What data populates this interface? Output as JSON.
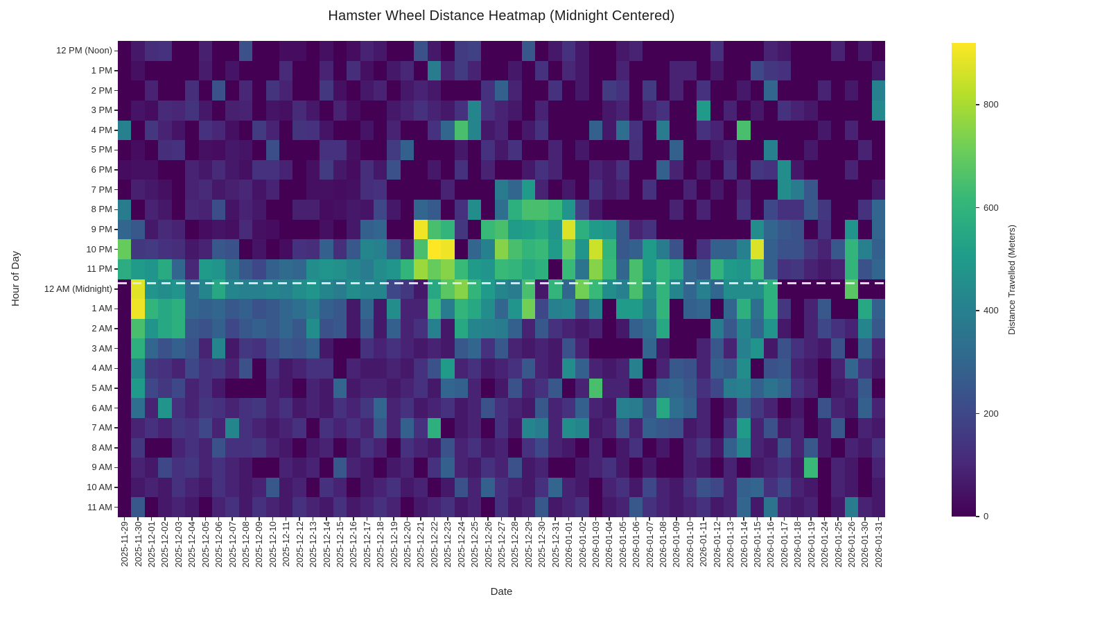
{
  "chart_data": {
    "type": "heatmap",
    "title": "Hamster Wheel Distance Heatmap (Midnight Centered)",
    "xlabel": "Date",
    "ylabel": "Hour of Day",
    "legend_position": "right-colorbar",
    "grid": false,
    "x": [
      "2025-11-29",
      "2025-11-30",
      "2025-12-01",
      "2025-12-02",
      "2025-12-03",
      "2025-12-04",
      "2025-12-05",
      "2025-12-06",
      "2025-12-07",
      "2025-12-08",
      "2025-12-09",
      "2025-12-10",
      "2025-12-11",
      "2025-12-12",
      "2025-12-13",
      "2025-12-14",
      "2025-12-15",
      "2025-12-16",
      "2025-12-17",
      "2025-12-18",
      "2025-12-19",
      "2025-12-20",
      "2025-12-21",
      "2025-12-22",
      "2025-12-23",
      "2025-12-24",
      "2025-12-25",
      "2025-12-26",
      "2025-12-27",
      "2025-12-28",
      "2025-12-29",
      "2025-12-30",
      "2025-12-31",
      "2026-01-01",
      "2026-01-02",
      "2026-01-03",
      "2026-01-04",
      "2026-01-05",
      "2026-01-06",
      "2026-01-07",
      "2026-01-08",
      "2026-01-09",
      "2026-01-10",
      "2026-01-11",
      "2026-01-12",
      "2026-01-13",
      "2026-01-14",
      "2026-01-15",
      "2026-01-16",
      "2026-01-17",
      "2026-01-18",
      "2026-01-19",
      "2026-01-24",
      "2026-01-25",
      "2026-01-26",
      "2026-01-30",
      "2026-01-31"
    ],
    "y": [
      "12 PM (Noon)",
      "1 PM",
      "2 PM",
      "3 PM",
      "4 PM",
      "5 PM",
      "6 PM",
      "7 PM",
      "8 PM",
      "9 PM",
      "10 PM",
      "11 PM",
      "12 AM (Midnight)",
      "1 AM",
      "2 AM",
      "3 AM",
      "4 AM",
      "5 AM",
      "6 AM",
      "7 AM",
      "8 AM",
      "9 AM",
      "10 AM",
      "11 AM"
    ],
    "values": [
      [
        0,
        60,
        120,
        130,
        0,
        0,
        80,
        0,
        0,
        230,
        0,
        0,
        30,
        30,
        0,
        40,
        0,
        30,
        90,
        60,
        0,
        0,
        230,
        60,
        0,
        160,
        180,
        0,
        0,
        0,
        250,
        0,
        60,
        130,
        60,
        0,
        0,
        60,
        90,
        0,
        0,
        0,
        0,
        0,
        130,
        0,
        0,
        0,
        90,
        60,
        0,
        0,
        0,
        90,
        0,
        60,
        0
      ],
      [
        0,
        40,
        0,
        0,
        0,
        0,
        70,
        0,
        50,
        0,
        0,
        0,
        110,
        0,
        0,
        90,
        0,
        120,
        40,
        0,
        60,
        100,
        0,
        380,
        90,
        160,
        90,
        0,
        0,
        60,
        0,
        130,
        0,
        100,
        60,
        0,
        0,
        90,
        0,
        0,
        0,
        90,
        90,
        0,
        60,
        0,
        0,
        200,
        150,
        130,
        0,
        0,
        0,
        0,
        0,
        0,
        60
      ],
      [
        0,
        0,
        90,
        0,
        0,
        120,
        0,
        230,
        0,
        100,
        0,
        140,
        90,
        0,
        0,
        150,
        40,
        0,
        60,
        90,
        0,
        60,
        90,
        60,
        0,
        0,
        0,
        130,
        280,
        90,
        0,
        0,
        130,
        0,
        60,
        0,
        160,
        130,
        0,
        160,
        0,
        90,
        0,
        130,
        0,
        0,
        60,
        0,
        300,
        0,
        0,
        0,
        90,
        0,
        60,
        0,
        400
      ],
      [
        0,
        50,
        30,
        110,
        100,
        140,
        60,
        0,
        80,
        90,
        0,
        50,
        40,
        110,
        60,
        0,
        90,
        30,
        0,
        0,
        60,
        90,
        130,
        90,
        60,
        130,
        420,
        130,
        90,
        60,
        0,
        90,
        0,
        0,
        0,
        0,
        60,
        90,
        0,
        90,
        130,
        0,
        0,
        500,
        0,
        90,
        0,
        60,
        0,
        130,
        90,
        60,
        0,
        0,
        0,
        0,
        430
      ],
      [
        400,
        0,
        150,
        90,
        50,
        0,
        130,
        100,
        40,
        0,
        160,
        90,
        0,
        140,
        130,
        50,
        0,
        0,
        50,
        0,
        90,
        0,
        0,
        130,
        300,
        650,
        420,
        60,
        90,
        0,
        60,
        130,
        0,
        0,
        0,
        280,
        60,
        330,
        130,
        0,
        380,
        0,
        0,
        130,
        90,
        0,
        650,
        0,
        0,
        0,
        0,
        0,
        60,
        0,
        90,
        0,
        0
      ],
      [
        0,
        30,
        0,
        120,
        130,
        0,
        40,
        30,
        60,
        50,
        0,
        220,
        0,
        0,
        0,
        130,
        130,
        40,
        0,
        0,
        160,
        280,
        0,
        0,
        0,
        60,
        0,
        130,
        60,
        130,
        0,
        0,
        90,
        0,
        60,
        0,
        0,
        0,
        120,
        0,
        0,
        280,
        0,
        0,
        60,
        90,
        0,
        0,
        400,
        0,
        0,
        60,
        0,
        0,
        0,
        90,
        0
      ],
      [
        30,
        40,
        40,
        0,
        0,
        90,
        60,
        110,
        60,
        40,
        130,
        130,
        90,
        0,
        40,
        160,
        60,
        30,
        120,
        60,
        230,
        0,
        0,
        60,
        0,
        130,
        0,
        90,
        0,
        0,
        60,
        130,
        90,
        0,
        0,
        90,
        60,
        130,
        0,
        0,
        280,
        90,
        0,
        60,
        0,
        130,
        0,
        150,
        130,
        450,
        60,
        0,
        0,
        0,
        90,
        0,
        0
      ],
      [
        0,
        80,
        60,
        40,
        0,
        90,
        110,
        60,
        80,
        100,
        50,
        90,
        0,
        0,
        40,
        40,
        30,
        40,
        120,
        130,
        0,
        0,
        0,
        0,
        90,
        0,
        0,
        0,
        380,
        300,
        500,
        90,
        0,
        60,
        0,
        130,
        60,
        90,
        0,
        130,
        0,
        0,
        90,
        0,
        60,
        0,
        90,
        0,
        0,
        450,
        380,
        250,
        0,
        0,
        0,
        0,
        60
      ],
      [
        380,
        0,
        90,
        60,
        0,
        100,
        90,
        220,
        50,
        90,
        60,
        0,
        0,
        80,
        80,
        30,
        40,
        60,
        50,
        200,
        60,
        0,
        300,
        260,
        0,
        130,
        450,
        0,
        330,
        580,
        650,
        650,
        620,
        480,
        170,
        60,
        0,
        0,
        0,
        0,
        0,
        90,
        0,
        90,
        0,
        0,
        130,
        0,
        200,
        130,
        130,
        250,
        150,
        0,
        0,
        130,
        300
      ],
      [
        300,
        250,
        60,
        110,
        90,
        0,
        30,
        50,
        40,
        110,
        40,
        30,
        0,
        0,
        0,
        40,
        0,
        60,
        280,
        300,
        0,
        0,
        900,
        650,
        600,
        150,
        0,
        620,
        650,
        500,
        520,
        550,
        480,
        870,
        580,
        500,
        480,
        250,
        90,
        130,
        0,
        0,
        0,
        0,
        0,
        0,
        0,
        450,
        300,
        250,
        230,
        0,
        130,
        0,
        480,
        0,
        300
      ],
      [
        700,
        150,
        160,
        130,
        120,
        60,
        90,
        250,
        230,
        0,
        50,
        0,
        30,
        130,
        120,
        280,
        120,
        250,
        420,
        400,
        250,
        90,
        650,
        930,
        900,
        0,
        300,
        400,
        750,
        650,
        600,
        620,
        500,
        700,
        480,
        850,
        600,
        250,
        280,
        500,
        380,
        230,
        0,
        130,
        280,
        280,
        400,
        870,
        280,
        230,
        230,
        150,
        90,
        250,
        600,
        400,
        280
      ],
      [
        570,
        500,
        480,
        560,
        300,
        100,
        500,
        480,
        350,
        250,
        200,
        280,
        320,
        300,
        450,
        480,
        460,
        420,
        380,
        450,
        480,
        600,
        780,
        700,
        750,
        620,
        500,
        480,
        620,
        600,
        550,
        580,
        0,
        620,
        350,
        750,
        620,
        300,
        650,
        500,
        600,
        550,
        300,
        250,
        600,
        500,
        480,
        620,
        280,
        130,
        150,
        90,
        60,
        90,
        600,
        230,
        300
      ],
      [
        0,
        880,
        480,
        450,
        480,
        300,
        420,
        550,
        420,
        400,
        400,
        420,
        400,
        450,
        480,
        420,
        380,
        450,
        420,
        420,
        200,
        150,
        60,
        550,
        680,
        750,
        600,
        500,
        420,
        380,
        650,
        60,
        600,
        300,
        720,
        620,
        450,
        400,
        650,
        450,
        600,
        420,
        300,
        400,
        300,
        450,
        450,
        450,
        580,
        0,
        0,
        0,
        0,
        0,
        680,
        0,
        0
      ],
      [
        0,
        900,
        600,
        550,
        580,
        300,
        280,
        300,
        250,
        280,
        230,
        250,
        300,
        330,
        380,
        280,
        250,
        60,
        300,
        60,
        450,
        90,
        90,
        620,
        380,
        600,
        550,
        450,
        300,
        480,
        720,
        200,
        400,
        420,
        230,
        400,
        0,
        500,
        500,
        400,
        600,
        0,
        280,
        300,
        0,
        300,
        580,
        330,
        580,
        150,
        0,
        90,
        250,
        0,
        0,
        550,
        280
      ],
      [
        0,
        650,
        480,
        550,
        580,
        250,
        230,
        280,
        200,
        250,
        280,
        250,
        300,
        250,
        450,
        230,
        250,
        60,
        250,
        60,
        280,
        90,
        130,
        400,
        60,
        550,
        420,
        400,
        380,
        280,
        90,
        250,
        130,
        90,
        60,
        90,
        0,
        60,
        280,
        330,
        550,
        0,
        0,
        0,
        380,
        250,
        420,
        300,
        480,
        60,
        0,
        90,
        200,
        130,
        90,
        420,
        250
      ],
      [
        0,
        580,
        300,
        230,
        280,
        230,
        90,
        420,
        60,
        150,
        130,
        200,
        250,
        230,
        280,
        60,
        0,
        0,
        130,
        90,
        130,
        90,
        60,
        90,
        60,
        250,
        300,
        130,
        250,
        90,
        60,
        90,
        60,
        230,
        90,
        0,
        0,
        0,
        0,
        300,
        60,
        0,
        0,
        90,
        250,
        90,
        400,
        480,
        60,
        230,
        130,
        90,
        60,
        230,
        0,
        280,
        90
      ],
      [
        0,
        420,
        150,
        130,
        90,
        200,
        130,
        150,
        90,
        230,
        0,
        130,
        60,
        90,
        130,
        130,
        0,
        90,
        60,
        60,
        90,
        60,
        130,
        230,
        500,
        90,
        130,
        60,
        90,
        130,
        250,
        90,
        60,
        450,
        280,
        90,
        60,
        90,
        400,
        0,
        90,
        250,
        230,
        90,
        280,
        250,
        450,
        0,
        230,
        250,
        90,
        60,
        0,
        90,
        300,
        130,
        60
      ],
      [
        0,
        500,
        200,
        150,
        200,
        90,
        130,
        60,
        0,
        0,
        0,
        90,
        60,
        0,
        90,
        60,
        300,
        60,
        90,
        90,
        60,
        90,
        130,
        60,
        300,
        280,
        90,
        0,
        60,
        230,
        90,
        130,
        250,
        0,
        90,
        650,
        90,
        90,
        0,
        90,
        280,
        300,
        250,
        130,
        200,
        380,
        400,
        280,
        350,
        300,
        130,
        90,
        0,
        60,
        90,
        250,
        0
      ],
      [
        0,
        330,
        90,
        480,
        130,
        90,
        150,
        130,
        90,
        130,
        150,
        90,
        130,
        60,
        90,
        60,
        130,
        90,
        150,
        300,
        90,
        130,
        60,
        90,
        130,
        60,
        90,
        230,
        130,
        90,
        60,
        250,
        90,
        130,
        280,
        90,
        60,
        400,
        380,
        250,
        550,
        330,
        280,
        90,
        0,
        60,
        250,
        150,
        90,
        0,
        60,
        0,
        230,
        90,
        60,
        280,
        90
      ],
      [
        0,
        90,
        130,
        90,
        150,
        130,
        200,
        90,
        420,
        130,
        90,
        60,
        90,
        130,
        0,
        130,
        90,
        130,
        90,
        250,
        90,
        280,
        130,
        580,
        0,
        60,
        90,
        0,
        130,
        60,
        420,
        380,
        90,
        450,
        420,
        60,
        90,
        230,
        90,
        280,
        250,
        230,
        60,
        90,
        0,
        130,
        500,
        90,
        230,
        60,
        90,
        0,
        60,
        250,
        0,
        90,
        60
      ],
      [
        0,
        150,
        0,
        0,
        90,
        130,
        90,
        230,
        130,
        130,
        150,
        90,
        60,
        0,
        60,
        90,
        0,
        60,
        130,
        90,
        0,
        130,
        90,
        60,
        230,
        90,
        130,
        60,
        90,
        0,
        130,
        200,
        90,
        60,
        0,
        90,
        0,
        60,
        130,
        0,
        60,
        0,
        90,
        150,
        60,
        280,
        420,
        90,
        60,
        230,
        90,
        250,
        60,
        0,
        90,
        60,
        130
      ],
      [
        0,
        90,
        60,
        200,
        130,
        150,
        90,
        130,
        90,
        60,
        0,
        0,
        90,
        60,
        90,
        0,
        250,
        90,
        60,
        0,
        60,
        90,
        0,
        130,
        280,
        90,
        60,
        130,
        90,
        230,
        60,
        90,
        0,
        0,
        60,
        90,
        130,
        60,
        0,
        60,
        0,
        0,
        90,
        60,
        0,
        90,
        0,
        60,
        90,
        130,
        60,
        620,
        0,
        90,
        60,
        0,
        90
      ],
      [
        0,
        60,
        90,
        60,
        130,
        90,
        60,
        130,
        90,
        60,
        90,
        250,
        60,
        90,
        0,
        130,
        90,
        0,
        60,
        90,
        130,
        60,
        90,
        0,
        60,
        230,
        90,
        280,
        130,
        90,
        60,
        130,
        300,
        90,
        60,
        0,
        90,
        130,
        60,
        200,
        90,
        60,
        130,
        230,
        200,
        90,
        280,
        300,
        130,
        200,
        90,
        60,
        0,
        90,
        60,
        0,
        60
      ],
      [
        0,
        250,
        0,
        60,
        90,
        60,
        0,
        90,
        130,
        60,
        130,
        90,
        60,
        130,
        90,
        60,
        130,
        60,
        90,
        130,
        90,
        0,
        60,
        90,
        130,
        60,
        90,
        0,
        130,
        60,
        90,
        250,
        60,
        90,
        130,
        0,
        60,
        90,
        250,
        130,
        90,
        60,
        90,
        130,
        60,
        90,
        300,
        60,
        350,
        90,
        60,
        90,
        0,
        60,
        380,
        90,
        60
      ]
    ],
    "colorbar": {
      "label": "Distance Travelled (Meters)",
      "ticks": [
        0,
        200,
        400,
        600,
        800
      ],
      "zmin": 0,
      "zmax": 920,
      "colormap": "viridis",
      "colormap_stops": [
        "#440154",
        "#482878",
        "#3e4989",
        "#31688e",
        "#26828e",
        "#1f9e89",
        "#35b779",
        "#6ece58",
        "#b5de2b",
        "#fde725"
      ]
    },
    "annotations": [
      {
        "type": "hline",
        "name": "midnight-line",
        "row_boundary_index": 12,
        "style": "dashed",
        "color": "#e2e8ea"
      }
    ]
  }
}
